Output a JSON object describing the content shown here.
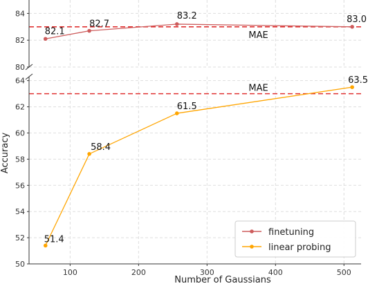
{
  "chart_data": {
    "type": "line",
    "xlabel": "Number of Gaussians",
    "ylabel": "Accuracy",
    "x": [
      64,
      128,
      256,
      512
    ],
    "xlim": [
      40,
      525
    ],
    "xticks": [
      100,
      200,
      300,
      400,
      500
    ],
    "broken_y_axis": true,
    "panels": [
      {
        "id": "top",
        "ylim": [
          80,
          85
        ],
        "yticks": [
          80,
          82,
          84
        ]
      },
      {
        "id": "bottom",
        "ylim": [
          50,
          64.3
        ],
        "yticks": [
          50,
          52,
          54,
          56,
          58,
          60,
          62,
          64
        ]
      }
    ],
    "grid": true,
    "legend_position": "bottom-right",
    "series": [
      {
        "name": "finetuning",
        "panel": "top",
        "color": "#cd5c5c",
        "values": [
          82.1,
          82.7,
          83.2,
          83.0
        ],
        "labels": [
          "82.1",
          "82.7",
          "83.2",
          "83.0"
        ]
      },
      {
        "name": "linear probing",
        "panel": "bottom",
        "color": "#ffa500",
        "values": [
          51.4,
          58.4,
          61.5,
          63.5
        ],
        "labels": [
          "51.4",
          "58.4",
          "61.5",
          "63.5"
        ]
      }
    ],
    "reference_lines": [
      {
        "panel": "top",
        "value": 83.0,
        "label": "MAE",
        "color": "#e03030"
      },
      {
        "panel": "bottom",
        "value": 63.0,
        "label": "MAE",
        "color": "#e03030"
      }
    ]
  }
}
